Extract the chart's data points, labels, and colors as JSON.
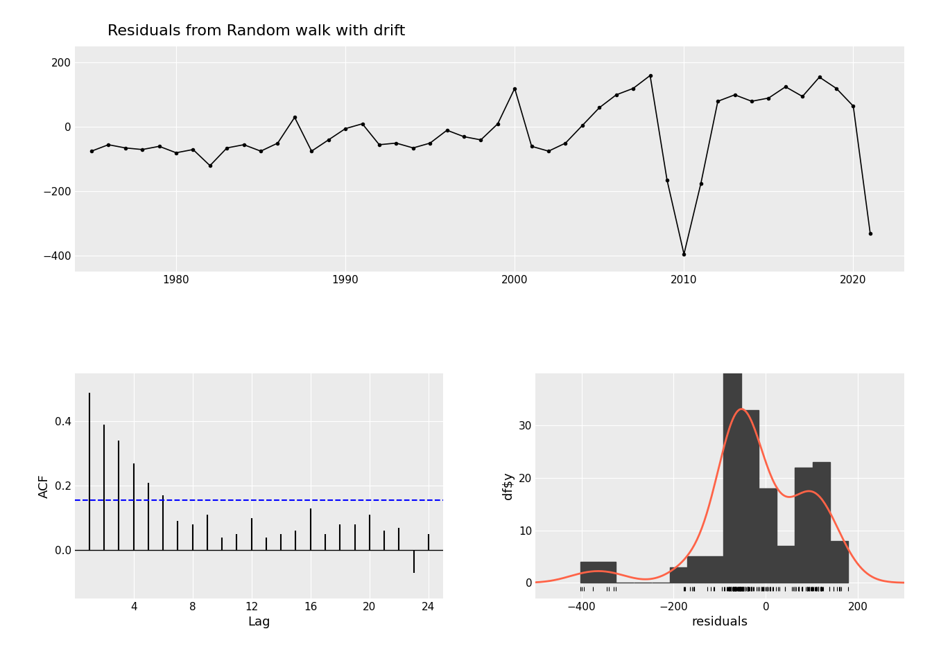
{
  "title": "Residuals from Random walk with drift",
  "bg_color": "#EBEBEB",
  "grid_color": "white",
  "time_series": {
    "years": [
      1975,
      1976,
      1977,
      1978,
      1979,
      1980,
      1981,
      1982,
      1983,
      1984,
      1985,
      1986,
      1987,
      1988,
      1989,
      1990,
      1991,
      1992,
      1993,
      1994,
      1995,
      1996,
      1997,
      1998,
      1999,
      2000,
      2001,
      2002,
      2003,
      2004,
      2005,
      2006,
      2007,
      2008,
      2009,
      2010,
      2011,
      2012,
      2013,
      2014,
      2015,
      2016,
      2017,
      2018,
      2019,
      2020,
      2021
    ],
    "values": [
      -75,
      -55,
      -65,
      -70,
      -60,
      -80,
      -70,
      -120,
      -65,
      -55,
      -75,
      -50,
      30,
      -75,
      -40,
      -5,
      10,
      -55,
      -50,
      -65,
      -50,
      -10,
      -30,
      -40,
      10,
      120,
      -60,
      -75,
      -50,
      5,
      60,
      100,
      120,
      160,
      -165,
      -395,
      -175,
      80,
      100,
      80,
      90,
      125,
      95,
      155,
      120,
      65,
      -330
    ],
    "ylim": [
      -450,
      250
    ],
    "yticks": [
      -400,
      -200,
      0,
      200
    ],
    "xticks": [
      1980,
      1990,
      2000,
      2010,
      2020
    ],
    "line_color": "black",
    "marker": "o",
    "markersize": 3,
    "linewidth": 1.2
  },
  "acf": {
    "lags": [
      1,
      2,
      3,
      4,
      5,
      6,
      7,
      8,
      9,
      10,
      11,
      12,
      13,
      14,
      15,
      16,
      17,
      18,
      19,
      20,
      21,
      22,
      23,
      24
    ],
    "values": [
      0.49,
      0.39,
      0.34,
      0.27,
      0.21,
      0.17,
      0.09,
      0.08,
      0.11,
      0.04,
      0.05,
      0.1,
      0.04,
      0.05,
      0.06,
      0.13,
      0.05,
      0.08,
      0.08,
      0.11,
      0.06,
      0.07,
      -0.07,
      0.05
    ],
    "confidence": 0.155,
    "ci_color": "#0000FF",
    "bar_color": "black",
    "xlabel": "Lag",
    "ylabel": "ACF",
    "xlim": [
      0,
      25
    ],
    "ylim": [
      -0.15,
      0.55
    ],
    "yticks": [
      0.0,
      0.2,
      0.4
    ],
    "xticks": [
      4,
      8,
      12,
      16,
      20,
      24
    ]
  },
  "histogram": {
    "residuals": [
      -75,
      -55,
      -65,
      -70,
      -60,
      -80,
      -70,
      -120,
      -65,
      -55,
      -75,
      -50,
      30,
      -75,
      -40,
      -5,
      10,
      -55,
      -50,
      -65,
      -50,
      -10,
      -30,
      -40,
      10,
      120,
      -60,
      -75,
      -50,
      5,
      60,
      100,
      120,
      160,
      -165,
      -395,
      -175,
      80,
      100,
      80,
      90,
      125,
      95,
      155,
      120,
      65,
      -330
    ],
    "bar_color": "#404040",
    "curve_color": "#FF6347",
    "xlabel": "residuals",
    "ylabel": "df$y",
    "xlim": [
      -500,
      300
    ],
    "ylim": [
      -3,
      40
    ],
    "xticks": [
      -400,
      -200,
      0,
      200
    ],
    "yticks": [
      0,
      10,
      20,
      30
    ],
    "bins": 15,
    "curve_linewidth": 2.0
  }
}
